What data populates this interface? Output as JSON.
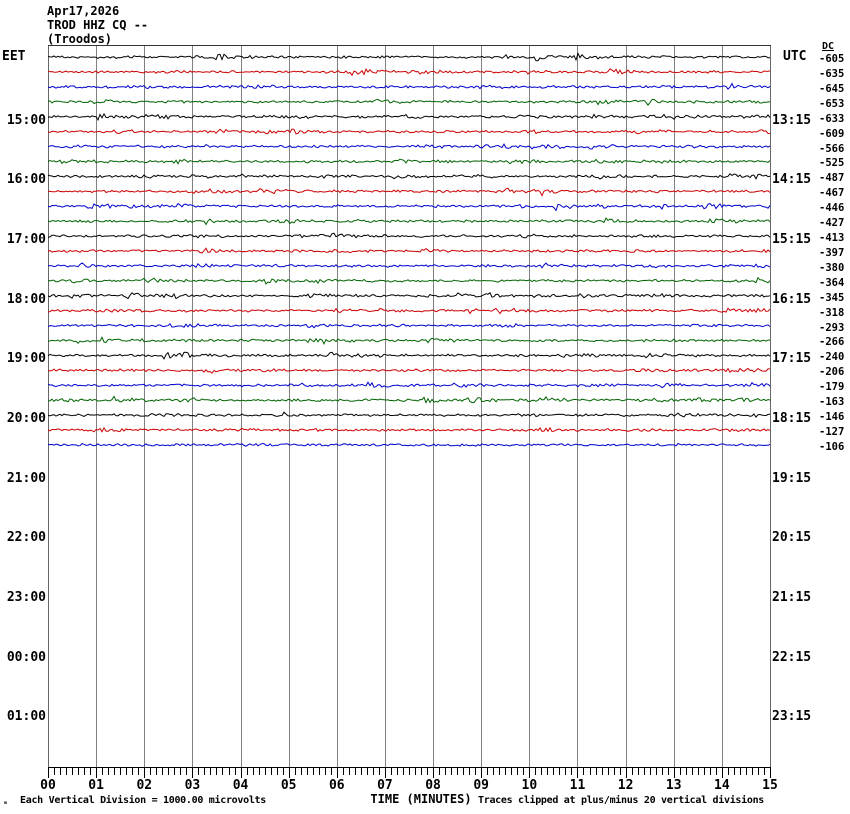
{
  "title": {
    "date": "Apr17,2026",
    "station": "TROD HHZ CQ --",
    "location": "(Troodos)"
  },
  "axes": {
    "left_header": "EET",
    "right_header": "UTC",
    "dc_header": "DC",
    "left_hour_labels": [
      "15:00",
      "16:00",
      "17:00",
      "18:00",
      "19:00",
      "20:00",
      "21:00",
      "22:00",
      "23:00",
      "00:00",
      "01:00"
    ],
    "right_hour_labels": [
      "13:15",
      "14:15",
      "15:15",
      "16:15",
      "17:15",
      "18:15",
      "19:15",
      "20:15",
      "21:15",
      "22:15",
      "23:15"
    ],
    "x_tick_labels": [
      "00",
      "01",
      "02",
      "03",
      "04",
      "05",
      "06",
      "07",
      "08",
      "09",
      "10",
      "11",
      "12",
      "13",
      "14",
      "15"
    ],
    "x_axis_title": "TIME (MINUTES)"
  },
  "dc_values": [
    "-605",
    "-635",
    "-645",
    "-653",
    "-633",
    "-609",
    "-566",
    "-525",
    "-487",
    "-467",
    "-446",
    "-427",
    "-413",
    "-397",
    "-380",
    "-364",
    "-345",
    "-318",
    "-293",
    "-266",
    "-240",
    "-206",
    "-179",
    "-163",
    "-146",
    "-127",
    "-106"
  ],
  "footer": {
    "corner_mark": "ₘ",
    "scale_note": "Each Vertical Division = 1000.00 microvolts",
    "clip_note": "Traces clipped at plus/minus 20 vertical divisions"
  },
  "trace_colors": [
    "#000000",
    "#cc0000",
    "#0000cc",
    "#006400"
  ],
  "grid_color": "#808080",
  "chart_data": {
    "type": "line",
    "title": "TROD HHZ CQ -- (Troodos) Apr17,2026",
    "subtitle": "Helicorder seismogram, 15-minute trace lines",
    "xlabel": "TIME (MINUTES)",
    "x_range": [
      0,
      15
    ],
    "x_tick_labels": [
      "00",
      "01",
      "02",
      "03",
      "04",
      "05",
      "06",
      "07",
      "08",
      "09",
      "10",
      "11",
      "12",
      "13",
      "14",
      "15"
    ],
    "left_axis_label": "EET",
    "right_axis_label": "UTC",
    "left_axis_ticks": [
      "15:00",
      "16:00",
      "17:00",
      "18:00",
      "19:00",
      "20:00",
      "21:00",
      "22:00",
      "23:00",
      "00:00",
      "01:00"
    ],
    "right_axis_ticks": [
      "13:15",
      "14:15",
      "15:15",
      "16:15",
      "17:15",
      "18:15",
      "19:15",
      "20:15",
      "21:15",
      "22:15",
      "23:15"
    ],
    "grid": true,
    "scale_note": "Each Vertical Division = 1000.00 microvolts",
    "clip_note": "Traces clipped at plus/minus 20 vertical divisions",
    "traces": [
      {
        "start_eet": "14:00",
        "color": "black",
        "dc_offset": -605
      },
      {
        "start_eet": "14:15",
        "color": "red",
        "dc_offset": -635
      },
      {
        "start_eet": "14:30",
        "color": "blue",
        "dc_offset": -645
      },
      {
        "start_eet": "14:45",
        "color": "green",
        "dc_offset": -653
      },
      {
        "start_eet": "15:00",
        "color": "black",
        "dc_offset": -633
      },
      {
        "start_eet": "15:15",
        "color": "red",
        "dc_offset": -609
      },
      {
        "start_eet": "15:30",
        "color": "blue",
        "dc_offset": -566
      },
      {
        "start_eet": "15:45",
        "color": "green",
        "dc_offset": -525
      },
      {
        "start_eet": "16:00",
        "color": "black",
        "dc_offset": -487
      },
      {
        "start_eet": "16:15",
        "color": "red",
        "dc_offset": -467
      },
      {
        "start_eet": "16:30",
        "color": "blue",
        "dc_offset": -446
      },
      {
        "start_eet": "16:45",
        "color": "green",
        "dc_offset": -427
      },
      {
        "start_eet": "17:00",
        "color": "black",
        "dc_offset": -413
      },
      {
        "start_eet": "17:15",
        "color": "red",
        "dc_offset": -397
      },
      {
        "start_eet": "17:30",
        "color": "blue",
        "dc_offset": -380
      },
      {
        "start_eet": "17:45",
        "color": "green",
        "dc_offset": -364
      },
      {
        "start_eet": "18:00",
        "color": "black",
        "dc_offset": -345
      },
      {
        "start_eet": "18:15",
        "color": "red",
        "dc_offset": -318
      },
      {
        "start_eet": "18:30",
        "color": "blue",
        "dc_offset": -293
      },
      {
        "start_eet": "18:45",
        "color": "green",
        "dc_offset": -266
      },
      {
        "start_eet": "19:00",
        "color": "black",
        "dc_offset": -240
      },
      {
        "start_eet": "19:15",
        "color": "red",
        "dc_offset": -206
      },
      {
        "start_eet": "19:30",
        "color": "blue",
        "dc_offset": -179
      },
      {
        "start_eet": "19:45",
        "color": "green",
        "dc_offset": -163
      },
      {
        "start_eet": "20:00",
        "color": "black",
        "dc_offset": -146
      },
      {
        "start_eet": "20:15",
        "color": "red",
        "dc_offset": -127
      },
      {
        "start_eet": "20:30",
        "color": "blue",
        "dc_offset": -106
      }
    ]
  }
}
